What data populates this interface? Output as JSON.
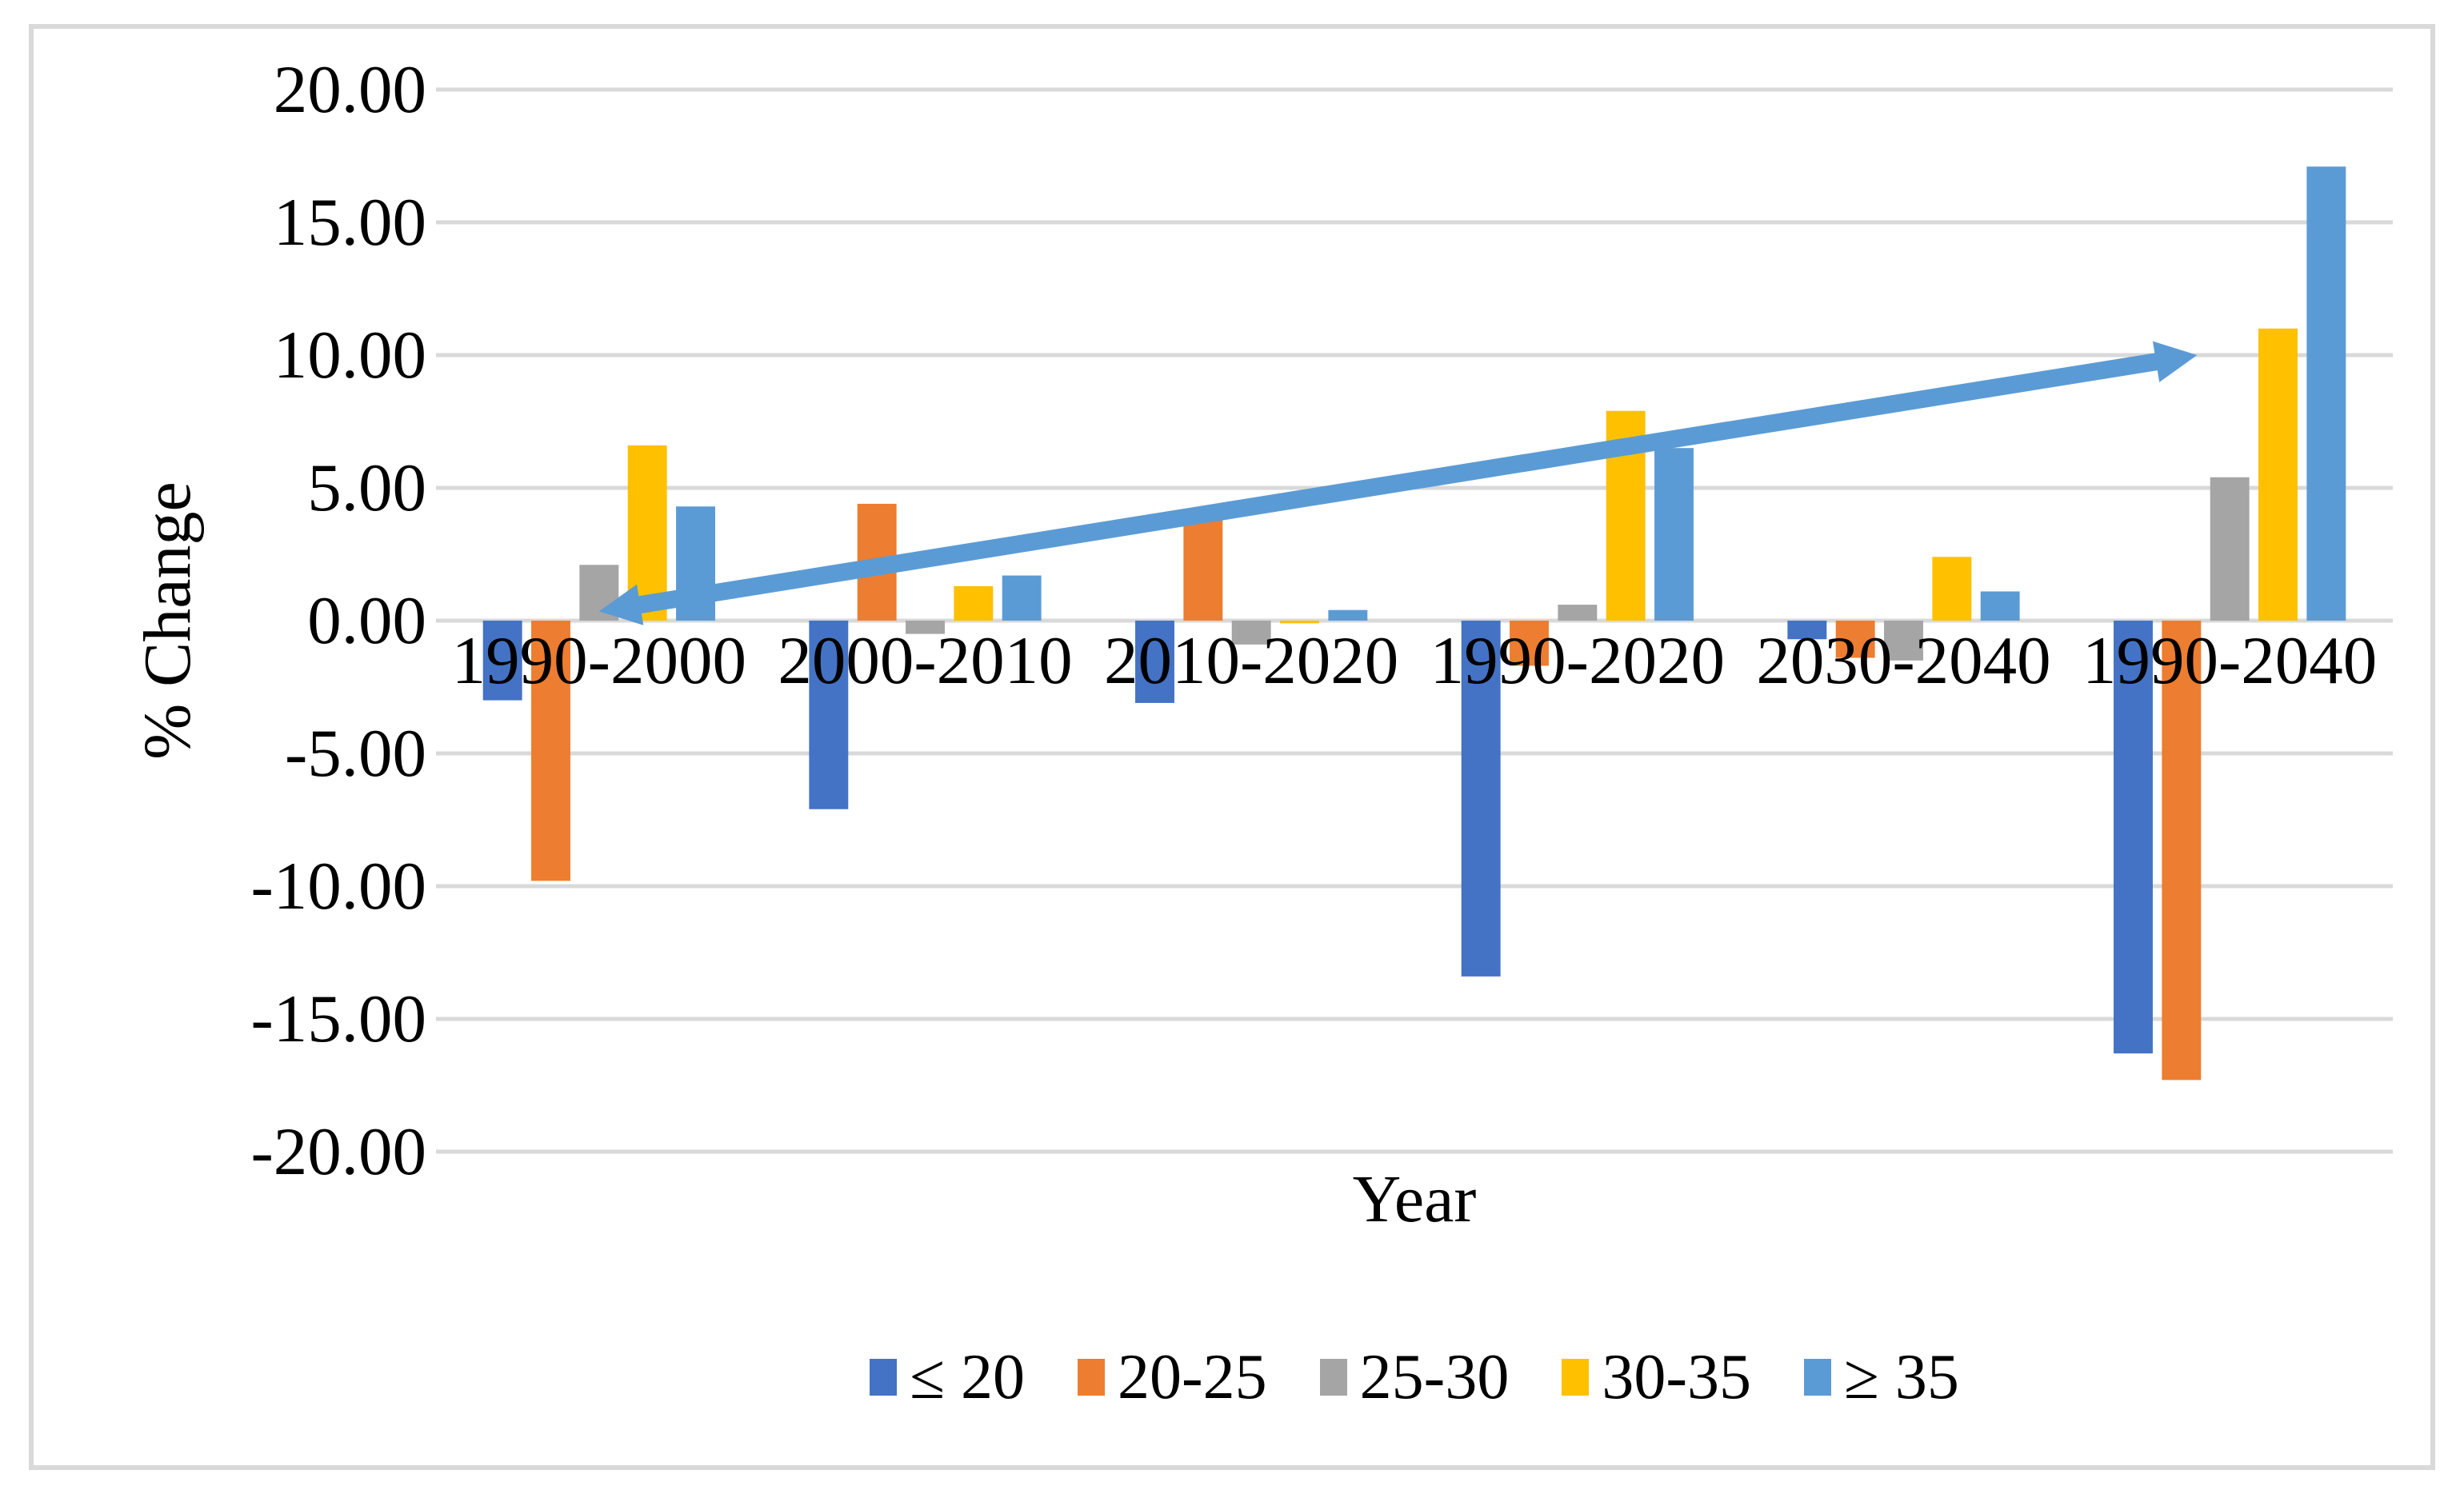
{
  "chart_data": {
    "type": "bar",
    "title": "",
    "xlabel": "Year",
    "ylabel": "% Change",
    "ylim": [
      -20,
      20
    ],
    "grid": true,
    "legend_position": "bottom",
    "ytick_values": [
      20,
      15,
      10,
      5,
      0,
      -5,
      -10,
      -15,
      -20
    ],
    "ytick_labels": [
      "20.00",
      "15.00",
      "10.00",
      "5.00",
      "0.00",
      "-5.00",
      "-10.00",
      "-15.00",
      "-20.00"
    ],
    "categories": [
      "1990-2000",
      "2000-2010",
      "2010-2020",
      "1990-2020",
      "2030-2040",
      "1990-2040"
    ],
    "series": [
      {
        "name": "≤ 20",
        "color": "#4472C4",
        "values": [
          -3.0,
          -7.1,
          -3.1,
          -13.4,
          -0.7,
          -16.3
        ]
      },
      {
        "name": "20-25",
        "color": "#ED7D31",
        "values": [
          -9.8,
          4.4,
          3.8,
          -1.7,
          -1.4,
          -17.3
        ]
      },
      {
        "name": "25-30",
        "color": "#A5A5A5",
        "values": [
          2.1,
          -0.5,
          -0.9,
          0.6,
          -1.5,
          5.4
        ]
      },
      {
        "name": "30-35",
        "color": "#FFC000",
        "values": [
          6.6,
          1.3,
          -0.1,
          7.9,
          2.4,
          11.0
        ]
      },
      {
        "name": "≥ 35",
        "color": "#5B9BD5",
        "values": [
          4.3,
          1.7,
          0.4,
          6.5,
          1.1,
          17.1
        ]
      }
    ],
    "annotation_arrow": {
      "description": "double-headed trend arrow",
      "color": "#5B9BD5",
      "from": {
        "x_group": 0.5,
        "value": 0.35
      },
      "to": {
        "x_group": 5.4,
        "value": 10.0
      }
    },
    "colors": {
      "gridline": "#D9D9D9",
      "figure_border": "#D9D9D9",
      "text": "#000000",
      "background": "#FFFFFF"
    }
  }
}
